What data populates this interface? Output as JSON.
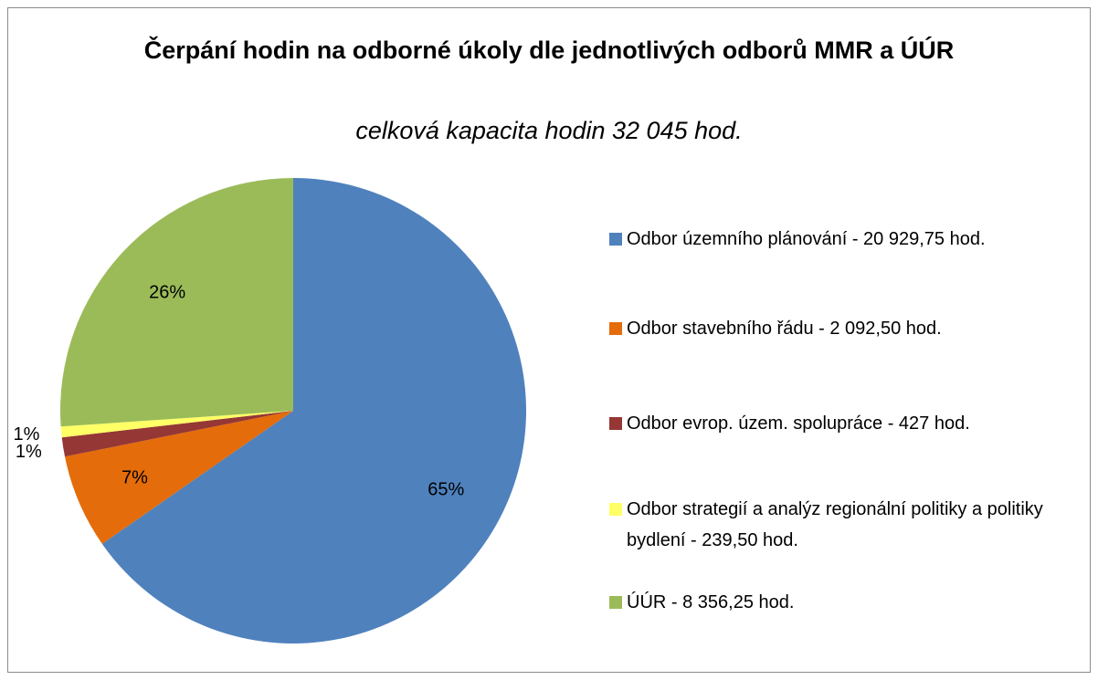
{
  "chart_data": {
    "type": "pie",
    "title": "Čerpání hodin na odborné úkoly dle jednotlivých odborů MMR a ÚÚR",
    "subtitle": "celková kapacita hodin 32 045 hod.",
    "categories": [
      "Odbor územního plánování - 20 929,75 hod.",
      "Odbor stavebního řádu - 2 092,50 hod.",
      "Odbor evrop. územ. spolupráce - 427 hod.",
      "Odbor strategií a analýz regionální politiky a politiky bydlení - 239,50 hod.",
      "ÚÚR - 8 356,25 hod."
    ],
    "values": [
      65.31,
      6.53,
      1.33,
      0.75,
      26.08
    ],
    "value_labels": [
      "65%",
      "7%",
      "1%",
      "1%",
      "26%"
    ],
    "colors": [
      "#4f81bd",
      "#e46c0a",
      "#953735",
      "#ffff66",
      "#9bbb59"
    ],
    "legend": "right"
  }
}
